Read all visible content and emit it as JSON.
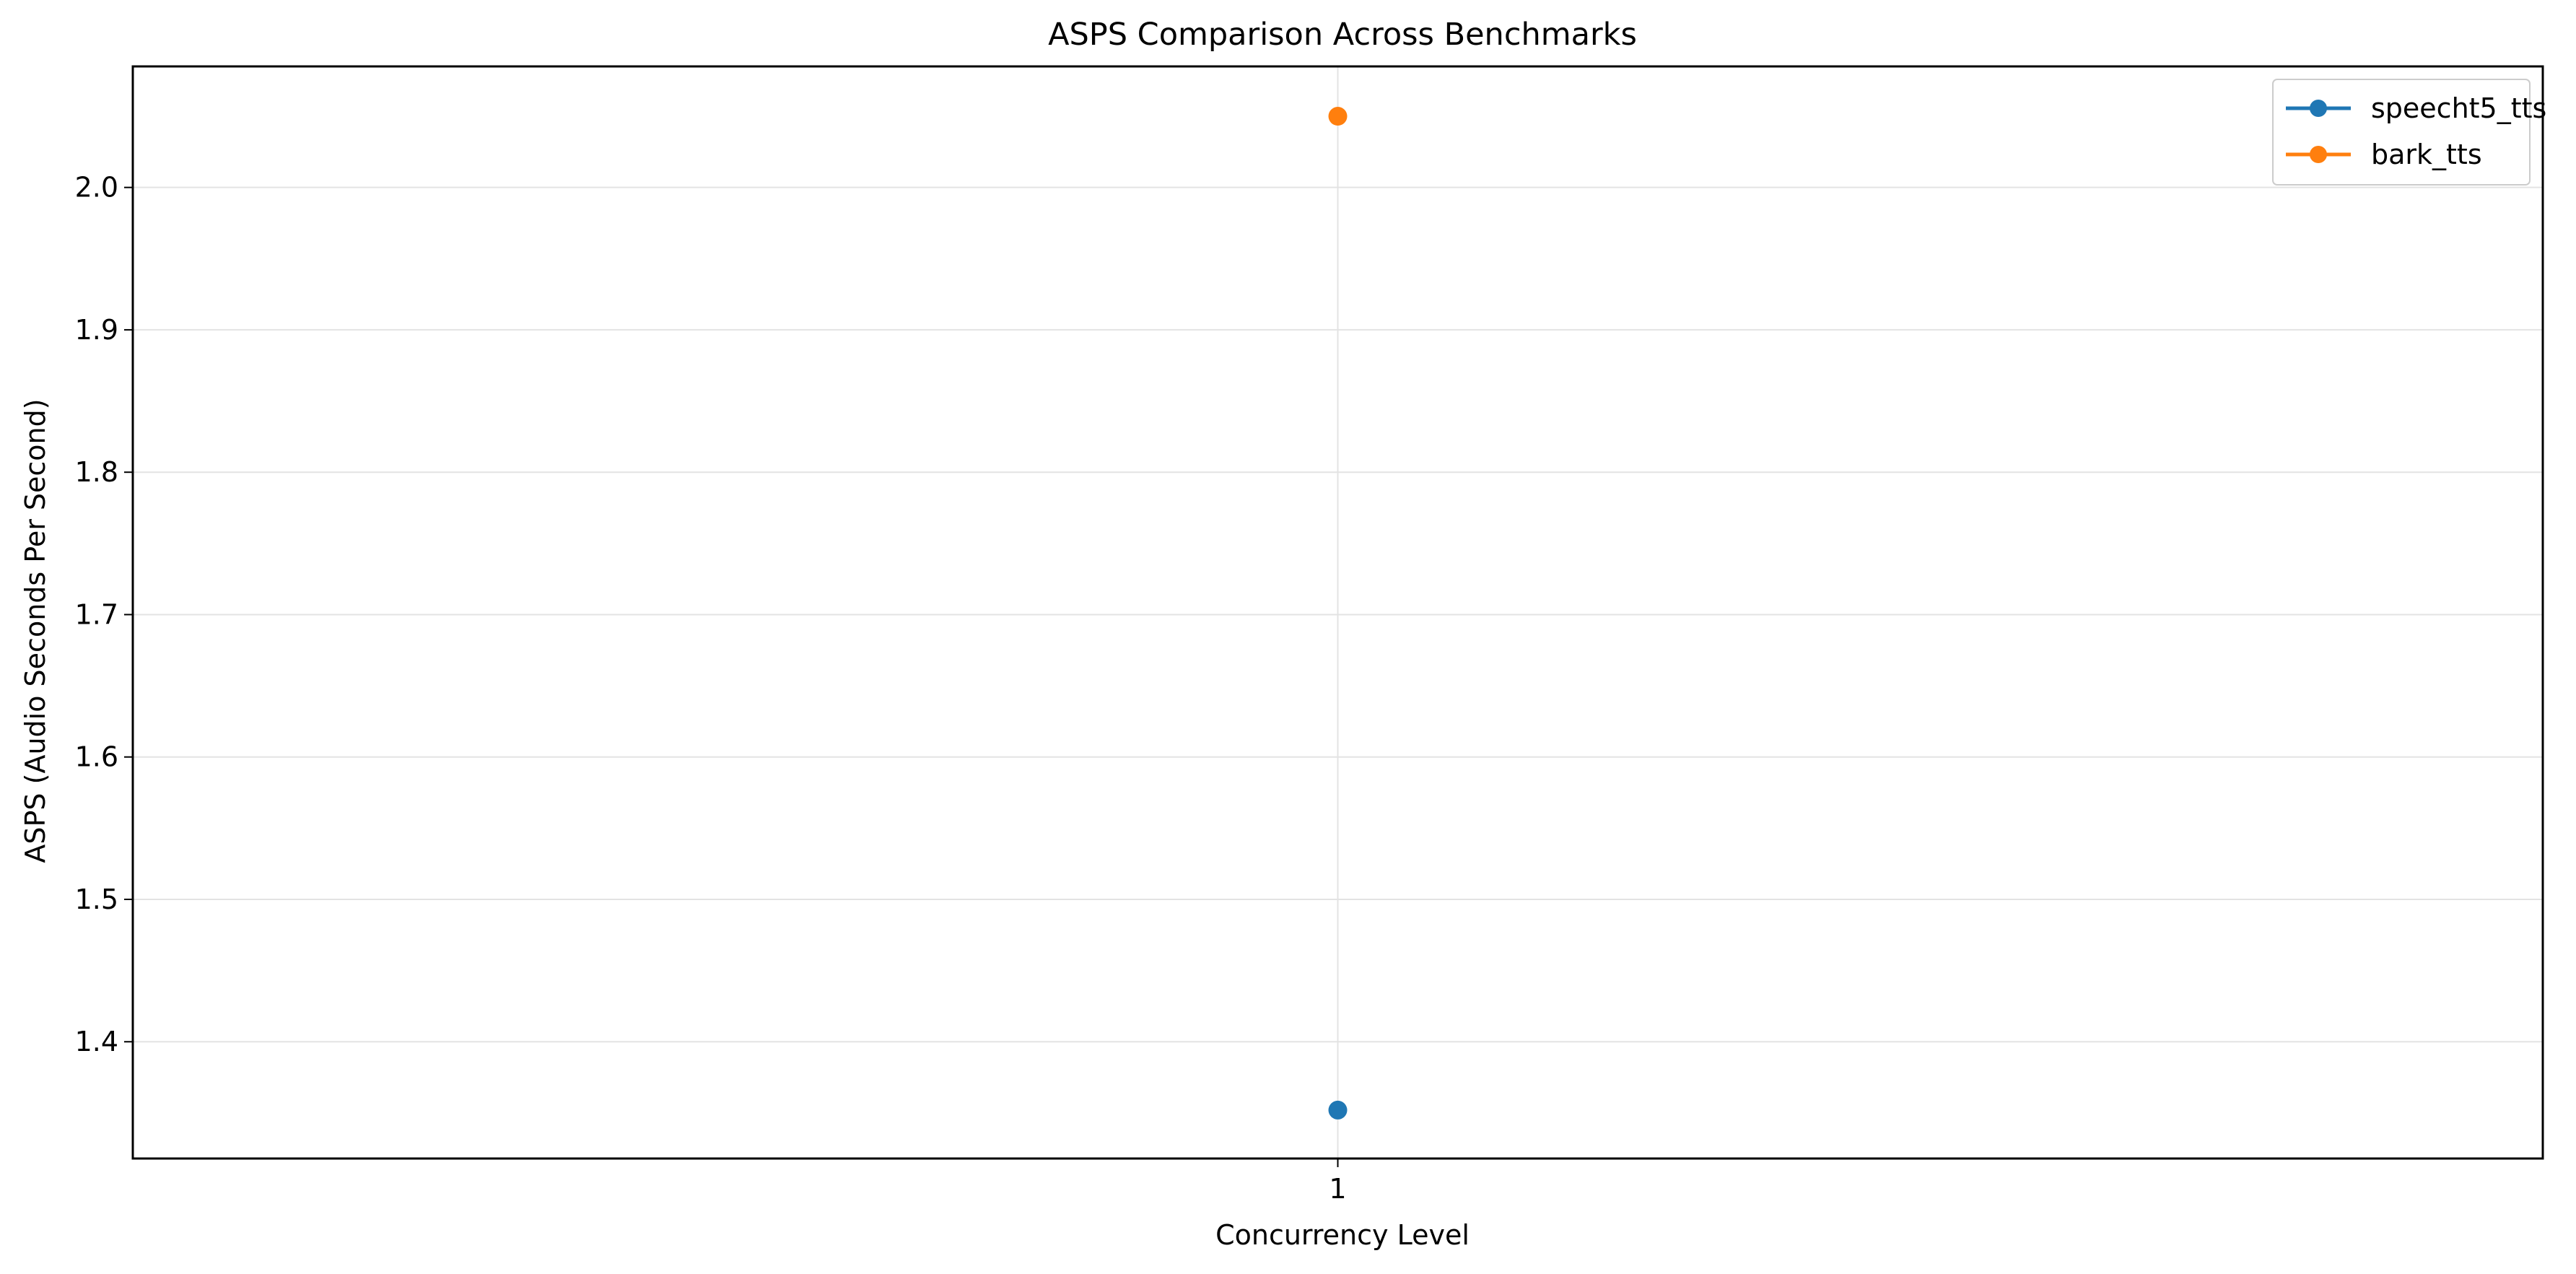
{
  "chart_data": {
    "type": "line",
    "title": "ASPS Comparison Across Benchmarks",
    "xlabel": "Concurrency Level",
    "ylabel": "ASPS (Audio Seconds Per Second)",
    "x": [
      1
    ],
    "x_tick_labels": [
      "1"
    ],
    "ylim": [
      1.318,
      2.085
    ],
    "y_ticks": [
      1.4,
      1.5,
      1.6,
      1.7,
      1.8,
      1.9,
      2.0
    ],
    "y_tick_labels": [
      "1.4",
      "1.5",
      "1.6",
      "1.7",
      "1.8",
      "1.9",
      "2.0"
    ],
    "grid": true,
    "legend_position": "top-right",
    "series": [
      {
        "name": "speecht5_tts",
        "color": "#1f77b4",
        "values": [
          1.352
        ]
      },
      {
        "name": "bark_tts",
        "color": "#ff7f0e",
        "values": [
          2.05
        ]
      }
    ]
  }
}
